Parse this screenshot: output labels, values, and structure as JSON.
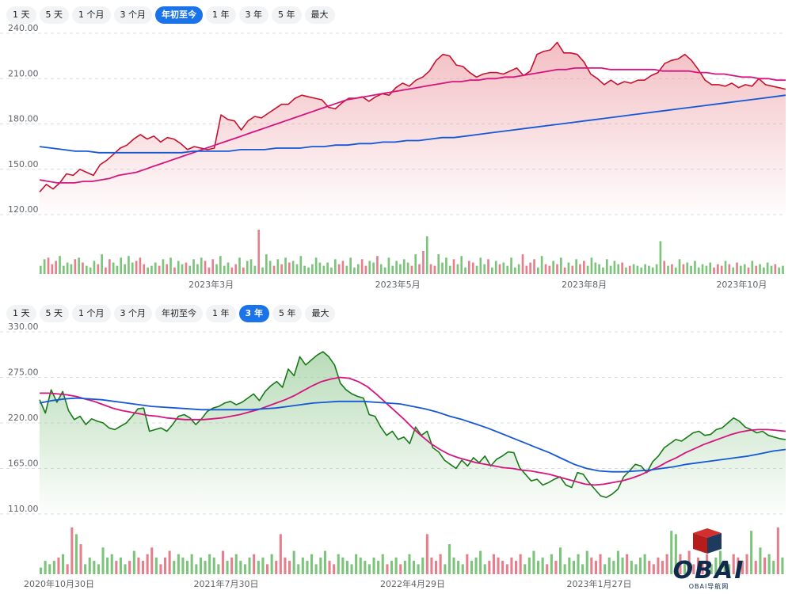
{
  "panel1": {
    "tabs": [
      {
        "label": "1 天",
        "active": false
      },
      {
        "label": "5 天",
        "active": false
      },
      {
        "label": "1 个月",
        "active": false
      },
      {
        "label": "3 个月",
        "active": false
      },
      {
        "label": "年初至今",
        "active": true
      },
      {
        "label": "1 年",
        "active": false
      },
      {
        "label": "3 年",
        "active": false
      },
      {
        "label": "5 年",
        "active": false
      },
      {
        "label": "最大",
        "active": false
      }
    ]
  },
  "panel2": {
    "tabs": [
      {
        "label": "1 天",
        "active": false
      },
      {
        "label": "5 天",
        "active": false
      },
      {
        "label": "1 个月",
        "active": false
      },
      {
        "label": "3 个月",
        "active": false
      },
      {
        "label": "年初至今",
        "active": false
      },
      {
        "label": "1 年",
        "active": false
      },
      {
        "label": "3 年",
        "active": true
      },
      {
        "label": "5 年",
        "active": false
      },
      {
        "label": "最大",
        "active": false
      }
    ]
  },
  "logo": {
    "text": "OBAI",
    "subtitle": "OBAI导航网"
  },
  "colors": {
    "price_up": "#c8102e",
    "price_down": "#177a17",
    "ma_short": "#d6147f",
    "ma_long": "#1558d6",
    "vol_up": "#e57f8c",
    "vol_down": "#7cc47c",
    "grid": "#dadce0"
  },
  "chart_data": [
    {
      "type": "area",
      "name": "ytd",
      "y_ticks": [
        240,
        210,
        180,
        150,
        120
      ],
      "y_tick_labels": [
        "240.00",
        "210.00",
        "180.00",
        "150.00",
        "120.00"
      ],
      "ylim": [
        120,
        240
      ],
      "x_ticks": [
        {
          "label": "2023年3月",
          "t": 0.23
        },
        {
          "label": "2023年5月",
          "t": 0.48
        },
        {
          "label": "2023年8月",
          "t": 0.73
        },
        {
          "label": "2023年10月",
          "t": 0.975
        }
      ],
      "series": [
        {
          "name": "price",
          "values": [
            135,
            140,
            137,
            141,
            147,
            146,
            150,
            148,
            146,
            153,
            156,
            160,
            164,
            166,
            170,
            173,
            170,
            172,
            168,
            171,
            170,
            167,
            163,
            165,
            164,
            163,
            164,
            186,
            183,
            182,
            176,
            182,
            185,
            184,
            187,
            190,
            193,
            193,
            197,
            199,
            198,
            197,
            196,
            191,
            190,
            194,
            197,
            197,
            198,
            195,
            198,
            200,
            199,
            204,
            207,
            205,
            209,
            211,
            215,
            222,
            226,
            225,
            219,
            218,
            214,
            211,
            213,
            214,
            214,
            213,
            215,
            217,
            212,
            215,
            226,
            228,
            229,
            234,
            227,
            227,
            226,
            221,
            213,
            210,
            206,
            209,
            206,
            208,
            207,
            209,
            209,
            212,
            214,
            220,
            222,
            223,
            226,
            222,
            216,
            209,
            206,
            206,
            205,
            207,
            204,
            206,
            205,
            210,
            206,
            205,
            204,
            203
          ],
          "ylim": [
            120,
            240
          ]
        },
        {
          "name": "ma50",
          "values": [
            143,
            142,
            141,
            141,
            141,
            142,
            142,
            143,
            144,
            146,
            147,
            148,
            150,
            152,
            154,
            156,
            158,
            160,
            162,
            164,
            166,
            168,
            170,
            172,
            174,
            176,
            178,
            180,
            182,
            184,
            186,
            188,
            190,
            192,
            194,
            196,
            197,
            198,
            199,
            200,
            201,
            202,
            203,
            204,
            205,
            206,
            207,
            208,
            208,
            209,
            209,
            210,
            210,
            211,
            211,
            212,
            213,
            214,
            215,
            216,
            216,
            217,
            217,
            217,
            217,
            216,
            216,
            216,
            216,
            216,
            216,
            215,
            215,
            215,
            215,
            214,
            214,
            213,
            213,
            212,
            211,
            211,
            210,
            210,
            209,
            209
          ],
          "ylim": [
            120,
            240
          ]
        },
        {
          "name": "ma200",
          "values": [
            165,
            164,
            163,
            162,
            162,
            161,
            161,
            161,
            161,
            161,
            161,
            161,
            161,
            162,
            162,
            162,
            162,
            163,
            163,
            163,
            164,
            164,
            164,
            165,
            165,
            166,
            166,
            167,
            167,
            168,
            168,
            169,
            169,
            170,
            171,
            171,
            172,
            173,
            174,
            175,
            176,
            177,
            178,
            179,
            180,
            181,
            182,
            183,
            184,
            185,
            186,
            187,
            188,
            189,
            190,
            191,
            192,
            193,
            194,
            195,
            196,
            197,
            198,
            199
          ],
          "ylim": [
            120,
            240
          ]
        }
      ],
      "volume": [
        5,
        9,
        10,
        6,
        8,
        11,
        5,
        7,
        6,
        9,
        10,
        7,
        5,
        4,
        8,
        6,
        12,
        4,
        9,
        7,
        5,
        10,
        6,
        11,
        7,
        8,
        10,
        6,
        4,
        5,
        7,
        5,
        9,
        6,
        10,
        4,
        8,
        6,
        7,
        5,
        9,
        6,
        10,
        8,
        4,
        9,
        6,
        11,
        5,
        7,
        4,
        6,
        10,
        4,
        8,
        9,
        5,
        27,
        4,
        12,
        8,
        5,
        9,
        6,
        10,
        7,
        8,
        6,
        11,
        5,
        4,
        6,
        10,
        7,
        5,
        7,
        4,
        9,
        6,
        8,
        5,
        10,
        4,
        6,
        9,
        5,
        8,
        7,
        11,
        6,
        4,
        10,
        5,
        8,
        6,
        9,
        7,
        5,
        12,
        6,
        14,
        23,
        6,
        5,
        12,
        7,
        10,
        5,
        9,
        6,
        11,
        4,
        8,
        7,
        5,
        10,
        6,
        9,
        4,
        8,
        6,
        7,
        5,
        10,
        4,
        6,
        12,
        5,
        7,
        9,
        4,
        11,
        6,
        5,
        8,
        6,
        10,
        4,
        7,
        5,
        9,
        6,
        8,
        5,
        10,
        7,
        6,
        4,
        9,
        5,
        8,
        6,
        7,
        4,
        5,
        6,
        5,
        4,
        6,
        5,
        4,
        6,
        20,
        8,
        5,
        6,
        4,
        9,
        6,
        7,
        5,
        8,
        4,
        6,
        5,
        7,
        4,
        6,
        5,
        8,
        6,
        4,
        7,
        5,
        6,
        4,
        8,
        5,
        6,
        4,
        7,
        5,
        6,
        4,
        5
      ]
    },
    {
      "type": "area",
      "name": "3y",
      "y_ticks": [
        330,
        275,
        220,
        165,
        110
      ],
      "y_tick_labels": [
        "330.00",
        "275.00",
        "220.00",
        "165.00",
        "110.00"
      ],
      "ylim": [
        110,
        330
      ],
      "x_ticks": [
        {
          "label": "2020年10月30日",
          "t": 0.0
        },
        {
          "label": "2021年7月30日",
          "t": 0.25
        },
        {
          "label": "2022年4月29日",
          "t": 0.5
        },
        {
          "label": "2023年1月27日",
          "t": 0.75
        }
      ],
      "series": [
        {
          "name": "price",
          "values": [
            248,
            232,
            260,
            245,
            258,
            235,
            224,
            228,
            218,
            225,
            222,
            220,
            214,
            212,
            216,
            220,
            228,
            237,
            238,
            210,
            212,
            214,
            210,
            218,
            228,
            230,
            226,
            218,
            225,
            234,
            238,
            240,
            244,
            246,
            242,
            245,
            250,
            255,
            247,
            258,
            265,
            270,
            263,
            285,
            277,
            300,
            290,
            296,
            302,
            306,
            300,
            290,
            268,
            260,
            255,
            252,
            250,
            230,
            228,
            215,
            205,
            210,
            200,
            203,
            195,
            215,
            205,
            210,
            190,
            185,
            175,
            170,
            165,
            175,
            168,
            178,
            172,
            180,
            168,
            176,
            180,
            185,
            184,
            166,
            158,
            150,
            152,
            145,
            148,
            152,
            155,
            145,
            142,
            160,
            158,
            148,
            140,
            132,
            130,
            134,
            140,
            155,
            162,
            170,
            168,
            160,
            173,
            180,
            190,
            195,
            200,
            198,
            203,
            208,
            210,
            205,
            206,
            212,
            214,
            220,
            226,
            222,
            215,
            212,
            208,
            210,
            205,
            203,
            201,
            200
          ],
          "ylim": [
            110,
            330
          ]
        },
        {
          "name": "ma50",
          "values": [
            256,
            256,
            255,
            254,
            252,
            249,
            246,
            242,
            238,
            235,
            233,
            231,
            229,
            228,
            226,
            225,
            224,
            224,
            224,
            225,
            226,
            228,
            230,
            233,
            236,
            240,
            244,
            248,
            253,
            259,
            265,
            270,
            273,
            275,
            274,
            270,
            264,
            255,
            245,
            235,
            225,
            214,
            204,
            195,
            188,
            182,
            178,
            175,
            172,
            170,
            168,
            166,
            165,
            163,
            162,
            160,
            158,
            155,
            152,
            149,
            146,
            145,
            146,
            148,
            150,
            153,
            157,
            162,
            167,
            173,
            178,
            184,
            189,
            194,
            198,
            202,
            206,
            209,
            211,
            212,
            212,
            211,
            210
          ],
          "ylim": [
            110,
            330
          ]
        },
        {
          "name": "ma200",
          "values": [
            244,
            247,
            249,
            250,
            249,
            248,
            246,
            244,
            242,
            240,
            239,
            238,
            237,
            236,
            236,
            236,
            236,
            236,
            237,
            238,
            240,
            242,
            244,
            245,
            246,
            246,
            246,
            245,
            244,
            243,
            240,
            237,
            233,
            228,
            224,
            219,
            214,
            208,
            202,
            196,
            190,
            184,
            177,
            170,
            165,
            162,
            161,
            161,
            162,
            163,
            165,
            167,
            170,
            172,
            174,
            176,
            178,
            180,
            183,
            186,
            188
          ],
          "ylim": [
            110,
            330
          ]
        }
      ],
      "volume": [
        2,
        4,
        3,
        4,
        5,
        6,
        3,
        14,
        12,
        9,
        3,
        5,
        4,
        3,
        8,
        5,
        6,
        4,
        5,
        3,
        4,
        7,
        5,
        4,
        6,
        8,
        5,
        3,
        5,
        7,
        4,
        6,
        5,
        4,
        6,
        3,
        5,
        4,
        6,
        5,
        3,
        7,
        4,
        5,
        6,
        4,
        3,
        5,
        6,
        4,
        5,
        3,
        6,
        4,
        12,
        5,
        4,
        7,
        3,
        5,
        4,
        6,
        3,
        5,
        7,
        4,
        3,
        6,
        5,
        4,
        3,
        6,
        5,
        4,
        3,
        5,
        4,
        6,
        3,
        4,
        5,
        3,
        4,
        6,
        4,
        3,
        5,
        12,
        5,
        4,
        6,
        3,
        9,
        5,
        4,
        3,
        6,
        4,
        5,
        7,
        3,
        4,
        6,
        5,
        4,
        3,
        5,
        4,
        6,
        3,
        5,
        7,
        4,
        5,
        3,
        6,
        4,
        8,
        3,
        5,
        4,
        6,
        3,
        7,
        5,
        4,
        6,
        3,
        5,
        4,
        7,
        5,
        6,
        4,
        3,
        5,
        6,
        4,
        3,
        5,
        4,
        6,
        13,
        12,
        6,
        4,
        7,
        3,
        5,
        4,
        6,
        3,
        5,
        7,
        4,
        3,
        6,
        5,
        4,
        6,
        13,
        4,
        8,
        5,
        6,
        4,
        14,
        5
      ]
    }
  ]
}
